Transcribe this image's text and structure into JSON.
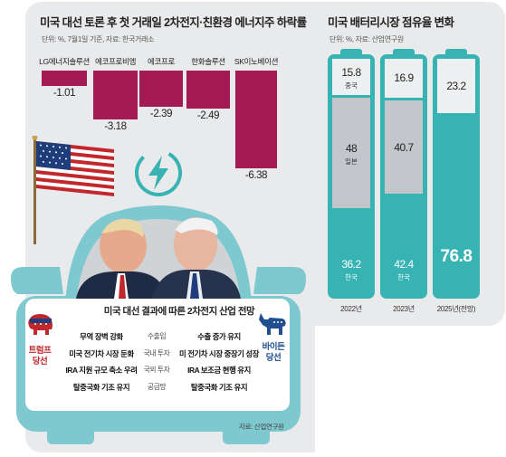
{
  "colors": {
    "bar": "#a31a55",
    "teal": "#38b3b4",
    "gray_light": "#eeeff0",
    "gray_mid": "#c3c7cb",
    "car": "#7ec8cf",
    "republican": "#c0282e",
    "democrat": "#1f4f8f"
  },
  "left_chart": {
    "title": "미국 대선 토론 후 첫 거래일 2차전지·친환경 에너지주 하락률",
    "note": "단위: %, 7월1일 기준, 자료: 한국거래소"
  },
  "right_chart": {
    "title": "미국 배터리시장 점유율 변화",
    "note": "단위: %, 자료: 산업연구원"
  },
  "chart_data": [
    {
      "type": "bar",
      "title": "미국 대선 토론 후 첫 거래일 2차전지·친환경 에너지주 하락률",
      "unit": "%",
      "categories": [
        "LG에너지솔루션",
        "에코프로비엠",
        "에코프로",
        "한화솔루션",
        "SK이노베이션"
      ],
      "values": [
        -1.01,
        -3.18,
        -2.39,
        -2.49,
        -6.38
      ],
      "value_labels": [
        "-1.01",
        "-3.18",
        "-2.39",
        "-2.49",
        "-6.38"
      ],
      "ylim": [
        -6.38,
        0
      ]
    },
    {
      "type": "bar",
      "stacked": true,
      "title": "미국 배터리시장 점유율 변화",
      "unit": "%",
      "categories": [
        "2022년",
        "2023년",
        "2025년(전망)"
      ],
      "series": [
        {
          "name": "한국",
          "values": [
            36.2,
            42.4,
            76.8
          ],
          "value_labels": [
            "36.2",
            "42.4",
            "76.8"
          ],
          "color": "#38b3b4"
        },
        {
          "name": "일본",
          "values": [
            48,
            40.7,
            null
          ],
          "value_labels": [
            "48",
            "40.7",
            ""
          ],
          "color": "#c3c7cb"
        },
        {
          "name": "중국",
          "values": [
            15.8,
            16.9,
            23.2
          ],
          "value_labels": [
            "15.8",
            "16.9",
            "23.2"
          ],
          "color": "#eeeff0"
        }
      ]
    }
  ],
  "outlook": {
    "title": "미국 대선 결과에 따른 2차전지 산업 전망",
    "left_party": "트럼프\n당선",
    "right_party": "바이든\n당선",
    "rows": [
      {
        "left": "무역 장벽 강화",
        "mid": "수출입",
        "right": "수출 증가 유지"
      },
      {
        "left": "미국 전기차 시장 둔화",
        "mid": "국내 투자",
        "right": "미 전기차 시장 중장기 성장"
      },
      {
        "left": "IRA 지원 규모 축소 우려",
        "mid": "국외 투자",
        "right": "IRA 보조금 현행 유지"
      },
      {
        "left": "탈중국화 기조 유지",
        "mid": "공급망",
        "right": "탈중국화 기조 유지"
      }
    ],
    "source": "자료: 산업연구원"
  },
  "icons": [
    "us-flag-icon",
    "lightning-icon",
    "republican-elephant-icon",
    "democrat-donkey-icon",
    "candidate-photo"
  ]
}
